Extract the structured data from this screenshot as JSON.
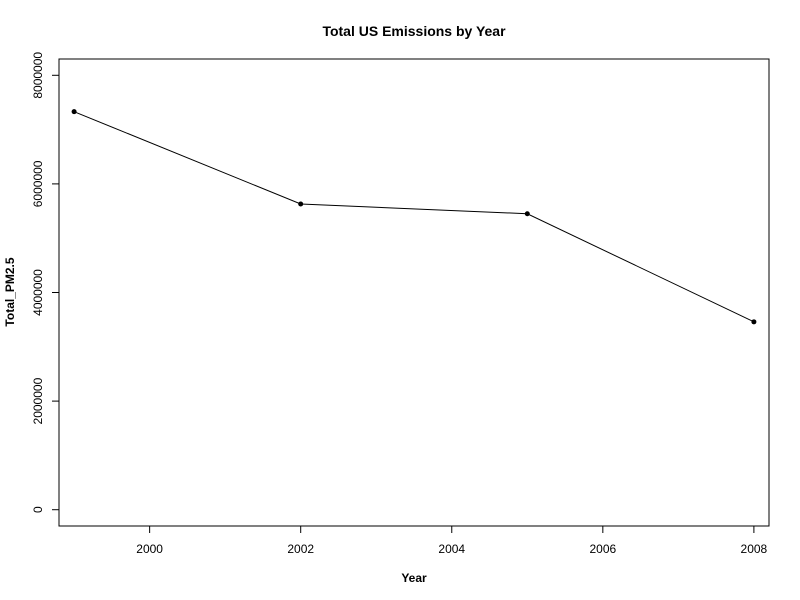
{
  "chart_data": {
    "type": "line",
    "title": "Total US Emissions by Year",
    "xlabel": "Year",
    "ylabel": "Total_PM2.5",
    "xlim": [
      1998.8,
      2008.2
    ],
    "ylim": [
      -300000,
      8300000
    ],
    "x_ticks": [
      2000,
      2002,
      2004,
      2006,
      2008
    ],
    "y_ticks": [
      0,
      2000000,
      4000000,
      6000000,
      8000000
    ],
    "x_tick_labels": [
      "2000",
      "2002",
      "2004",
      "2006",
      "2008"
    ],
    "y_tick_labels": [
      "0",
      "2000000",
      "4000000",
      "6000000",
      "8000000"
    ],
    "grid": false,
    "series": [
      {
        "x": [
          1999,
          2002,
          2005,
          2008
        ],
        "values": [
          7330000,
          5630000,
          5450000,
          3460000
        ],
        "color": "#000000",
        "marker": "filled-circle"
      }
    ]
  }
}
